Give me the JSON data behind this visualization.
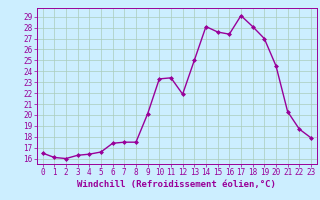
{
  "x": [
    0,
    1,
    2,
    3,
    4,
    5,
    6,
    7,
    8,
    9,
    10,
    11,
    12,
    13,
    14,
    15,
    16,
    17,
    18,
    19,
    20,
    21,
    22,
    23
  ],
  "y": [
    16.5,
    16.1,
    16.0,
    16.3,
    16.4,
    16.6,
    17.4,
    17.5,
    17.5,
    20.1,
    23.3,
    23.4,
    21.9,
    25.0,
    28.1,
    27.6,
    27.4,
    29.1,
    28.1,
    27.0,
    24.5,
    20.3,
    18.7,
    17.9
  ],
  "line_color": "#990099",
  "marker": "D",
  "marker_size": 2.0,
  "bg_color": "#cceeff",
  "grid_color": "#aaccbb",
  "xlabel": "Windchill (Refroidissement éolien,°C)",
  "xlabel_fontsize": 6.5,
  "ylabel_ticks": [
    16,
    17,
    18,
    19,
    20,
    21,
    22,
    23,
    24,
    25,
    26,
    27,
    28,
    29
  ],
  "ylim": [
    15.5,
    29.8
  ],
  "xlim": [
    -0.5,
    23.5
  ],
  "tick_fontsize": 5.5,
  "linewidth": 1.0
}
